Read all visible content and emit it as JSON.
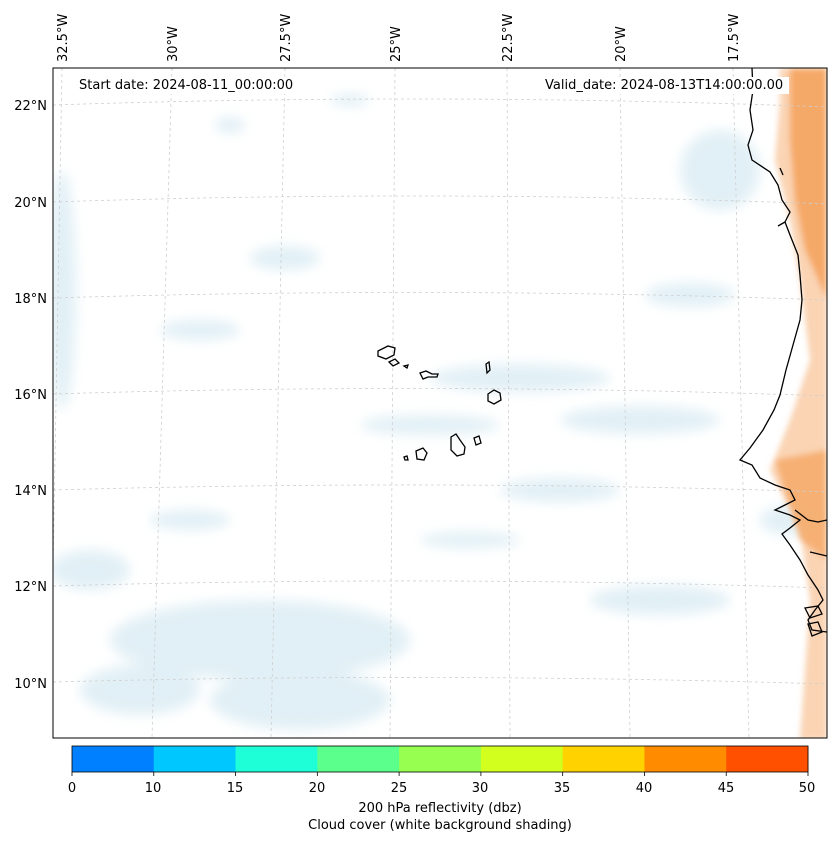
{
  "map": {
    "start_date": "Start date: 2024-08-11_00:00:00",
    "valid_date": "Valid_date: 2024-08-13T14:00:00.00",
    "lon_labels": [
      "32.5°W",
      "30°W",
      "27.5°W",
      "25°W",
      "22.5°W",
      "20°W",
      "17.5°W"
    ],
    "lat_labels": [
      "22°N",
      "20°N",
      "18°N",
      "16°N",
      "14°N",
      "12°N",
      "10°N"
    ],
    "islands": [
      "Santo Antão",
      "São Vicente",
      "Santa Luzia",
      "São Nicolau",
      "Sal",
      "Boa Vista",
      "Maio",
      "Santiago",
      "Fogo",
      "Brava"
    ],
    "coastline_region": "West Africa (Mauritania, Senegal, Gambia, Guinea-Bissau)"
  },
  "colorbar": {
    "ticks": [
      "0",
      "10",
      "15",
      "20",
      "25",
      "30",
      "35",
      "40",
      "45",
      "50"
    ],
    "colors": [
      "#0080ff",
      "#00c8ff",
      "#1effd8",
      "#5aff8c",
      "#96ff50",
      "#d2ff1e",
      "#ffd200",
      "#ff8c00",
      "#ff5000"
    ],
    "label_line1": "200 hPa reflectivity (dbz)",
    "label_line2": "Cloud cover (white background shading)"
  },
  "colors": {
    "cloud_shading": "#d6eaf2",
    "land_reflectivity": "#f4a460",
    "coastline": "#000000",
    "gridline": "#c8c8c8"
  }
}
